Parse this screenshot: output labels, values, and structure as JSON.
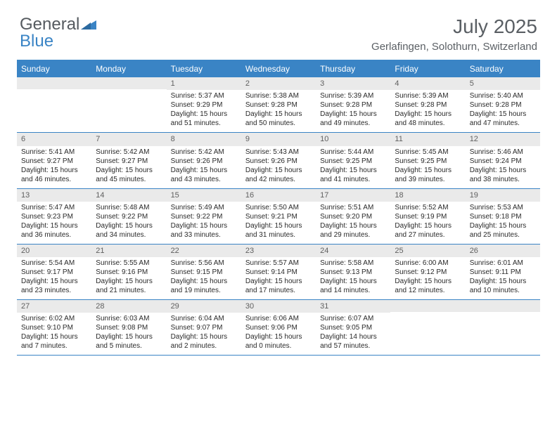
{
  "logo": {
    "word1": "General",
    "word2": "Blue"
  },
  "title": "July 2025",
  "location": "Gerlafingen, Solothurn, Switzerland",
  "colors": {
    "brand_blue": "#3a84c5",
    "header_text": "#5a5f64",
    "daynum_bg": "#eaeaea",
    "body_text": "#2a2a2a",
    "white": "#ffffff"
  },
  "weekdays": [
    "Sunday",
    "Monday",
    "Tuesday",
    "Wednesday",
    "Thursday",
    "Friday",
    "Saturday"
  ],
  "weeks": [
    [
      null,
      null,
      {
        "n": "1",
        "sr": "Sunrise: 5:37 AM",
        "ss": "Sunset: 9:29 PM",
        "dl": "Daylight: 15 hours and 51 minutes."
      },
      {
        "n": "2",
        "sr": "Sunrise: 5:38 AM",
        "ss": "Sunset: 9:28 PM",
        "dl": "Daylight: 15 hours and 50 minutes."
      },
      {
        "n": "3",
        "sr": "Sunrise: 5:39 AM",
        "ss": "Sunset: 9:28 PM",
        "dl": "Daylight: 15 hours and 49 minutes."
      },
      {
        "n": "4",
        "sr": "Sunrise: 5:39 AM",
        "ss": "Sunset: 9:28 PM",
        "dl": "Daylight: 15 hours and 48 minutes."
      },
      {
        "n": "5",
        "sr": "Sunrise: 5:40 AM",
        "ss": "Sunset: 9:28 PM",
        "dl": "Daylight: 15 hours and 47 minutes."
      }
    ],
    [
      {
        "n": "6",
        "sr": "Sunrise: 5:41 AM",
        "ss": "Sunset: 9:27 PM",
        "dl": "Daylight: 15 hours and 46 minutes."
      },
      {
        "n": "7",
        "sr": "Sunrise: 5:42 AM",
        "ss": "Sunset: 9:27 PM",
        "dl": "Daylight: 15 hours and 45 minutes."
      },
      {
        "n": "8",
        "sr": "Sunrise: 5:42 AM",
        "ss": "Sunset: 9:26 PM",
        "dl": "Daylight: 15 hours and 43 minutes."
      },
      {
        "n": "9",
        "sr": "Sunrise: 5:43 AM",
        "ss": "Sunset: 9:26 PM",
        "dl": "Daylight: 15 hours and 42 minutes."
      },
      {
        "n": "10",
        "sr": "Sunrise: 5:44 AM",
        "ss": "Sunset: 9:25 PM",
        "dl": "Daylight: 15 hours and 41 minutes."
      },
      {
        "n": "11",
        "sr": "Sunrise: 5:45 AM",
        "ss": "Sunset: 9:25 PM",
        "dl": "Daylight: 15 hours and 39 minutes."
      },
      {
        "n": "12",
        "sr": "Sunrise: 5:46 AM",
        "ss": "Sunset: 9:24 PM",
        "dl": "Daylight: 15 hours and 38 minutes."
      }
    ],
    [
      {
        "n": "13",
        "sr": "Sunrise: 5:47 AM",
        "ss": "Sunset: 9:23 PM",
        "dl": "Daylight: 15 hours and 36 minutes."
      },
      {
        "n": "14",
        "sr": "Sunrise: 5:48 AM",
        "ss": "Sunset: 9:22 PM",
        "dl": "Daylight: 15 hours and 34 minutes."
      },
      {
        "n": "15",
        "sr": "Sunrise: 5:49 AM",
        "ss": "Sunset: 9:22 PM",
        "dl": "Daylight: 15 hours and 33 minutes."
      },
      {
        "n": "16",
        "sr": "Sunrise: 5:50 AM",
        "ss": "Sunset: 9:21 PM",
        "dl": "Daylight: 15 hours and 31 minutes."
      },
      {
        "n": "17",
        "sr": "Sunrise: 5:51 AM",
        "ss": "Sunset: 9:20 PM",
        "dl": "Daylight: 15 hours and 29 minutes."
      },
      {
        "n": "18",
        "sr": "Sunrise: 5:52 AM",
        "ss": "Sunset: 9:19 PM",
        "dl": "Daylight: 15 hours and 27 minutes."
      },
      {
        "n": "19",
        "sr": "Sunrise: 5:53 AM",
        "ss": "Sunset: 9:18 PM",
        "dl": "Daylight: 15 hours and 25 minutes."
      }
    ],
    [
      {
        "n": "20",
        "sr": "Sunrise: 5:54 AM",
        "ss": "Sunset: 9:17 PM",
        "dl": "Daylight: 15 hours and 23 minutes."
      },
      {
        "n": "21",
        "sr": "Sunrise: 5:55 AM",
        "ss": "Sunset: 9:16 PM",
        "dl": "Daylight: 15 hours and 21 minutes."
      },
      {
        "n": "22",
        "sr": "Sunrise: 5:56 AM",
        "ss": "Sunset: 9:15 PM",
        "dl": "Daylight: 15 hours and 19 minutes."
      },
      {
        "n": "23",
        "sr": "Sunrise: 5:57 AM",
        "ss": "Sunset: 9:14 PM",
        "dl": "Daylight: 15 hours and 17 minutes."
      },
      {
        "n": "24",
        "sr": "Sunrise: 5:58 AM",
        "ss": "Sunset: 9:13 PM",
        "dl": "Daylight: 15 hours and 14 minutes."
      },
      {
        "n": "25",
        "sr": "Sunrise: 6:00 AM",
        "ss": "Sunset: 9:12 PM",
        "dl": "Daylight: 15 hours and 12 minutes."
      },
      {
        "n": "26",
        "sr": "Sunrise: 6:01 AM",
        "ss": "Sunset: 9:11 PM",
        "dl": "Daylight: 15 hours and 10 minutes."
      }
    ],
    [
      {
        "n": "27",
        "sr": "Sunrise: 6:02 AM",
        "ss": "Sunset: 9:10 PM",
        "dl": "Daylight: 15 hours and 7 minutes."
      },
      {
        "n": "28",
        "sr": "Sunrise: 6:03 AM",
        "ss": "Sunset: 9:08 PM",
        "dl": "Daylight: 15 hours and 5 minutes."
      },
      {
        "n": "29",
        "sr": "Sunrise: 6:04 AM",
        "ss": "Sunset: 9:07 PM",
        "dl": "Daylight: 15 hours and 2 minutes."
      },
      {
        "n": "30",
        "sr": "Sunrise: 6:06 AM",
        "ss": "Sunset: 9:06 PM",
        "dl": "Daylight: 15 hours and 0 minutes."
      },
      {
        "n": "31",
        "sr": "Sunrise: 6:07 AM",
        "ss": "Sunset: 9:05 PM",
        "dl": "Daylight: 14 hours and 57 minutes."
      },
      null,
      null
    ]
  ]
}
